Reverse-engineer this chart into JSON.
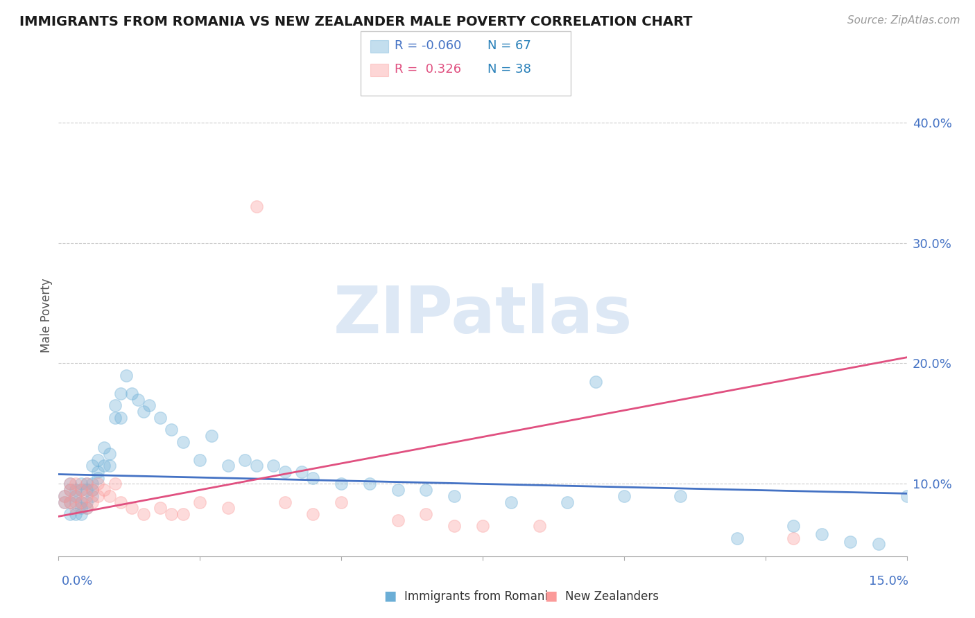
{
  "title": "IMMIGRANTS FROM ROMANIA VS NEW ZEALANDER MALE POVERTY CORRELATION CHART",
  "source": "Source: ZipAtlas.com",
  "ylabel": "Male Poverty",
  "ytick_labels": [
    "10.0%",
    "20.0%",
    "30.0%",
    "40.0%"
  ],
  "ytick_values": [
    0.1,
    0.2,
    0.3,
    0.4
  ],
  "xlim": [
    0.0,
    0.15
  ],
  "ylim": [
    0.04,
    0.44
  ],
  "watermark": "ZIPatlas",
  "blue_scatter_x": [
    0.001,
    0.001,
    0.002,
    0.002,
    0.002,
    0.002,
    0.003,
    0.003,
    0.003,
    0.003,
    0.004,
    0.004,
    0.004,
    0.004,
    0.004,
    0.005,
    0.005,
    0.005,
    0.005,
    0.006,
    0.006,
    0.006,
    0.006,
    0.007,
    0.007,
    0.007,
    0.008,
    0.008,
    0.009,
    0.009,
    0.01,
    0.01,
    0.011,
    0.011,
    0.012,
    0.013,
    0.014,
    0.015,
    0.016,
    0.018,
    0.02,
    0.022,
    0.025,
    0.027,
    0.03,
    0.033,
    0.035,
    0.038,
    0.04,
    0.043,
    0.045,
    0.05,
    0.055,
    0.06,
    0.065,
    0.07,
    0.08,
    0.09,
    0.1,
    0.11,
    0.12,
    0.13,
    0.135,
    0.14,
    0.145,
    0.15,
    0.095
  ],
  "blue_scatter_y": [
    0.09,
    0.085,
    0.095,
    0.1,
    0.085,
    0.075,
    0.09,
    0.095,
    0.085,
    0.075,
    0.1,
    0.095,
    0.085,
    0.08,
    0.075,
    0.095,
    0.1,
    0.085,
    0.08,
    0.095,
    0.1,
    0.115,
    0.09,
    0.11,
    0.12,
    0.105,
    0.115,
    0.13,
    0.115,
    0.125,
    0.155,
    0.165,
    0.155,
    0.175,
    0.19,
    0.175,
    0.17,
    0.16,
    0.165,
    0.155,
    0.145,
    0.135,
    0.12,
    0.14,
    0.115,
    0.12,
    0.115,
    0.115,
    0.11,
    0.11,
    0.105,
    0.1,
    0.1,
    0.095,
    0.095,
    0.09,
    0.085,
    0.085,
    0.09,
    0.09,
    0.055,
    0.065,
    0.058,
    0.052,
    0.05,
    0.09,
    0.185
  ],
  "pink_scatter_x": [
    0.001,
    0.001,
    0.002,
    0.002,
    0.002,
    0.003,
    0.003,
    0.003,
    0.004,
    0.004,
    0.005,
    0.005,
    0.005,
    0.006,
    0.006,
    0.007,
    0.007,
    0.008,
    0.009,
    0.01,
    0.011,
    0.013,
    0.015,
    0.018,
    0.02,
    0.022,
    0.025,
    0.03,
    0.035,
    0.04,
    0.045,
    0.05,
    0.06,
    0.065,
    0.07,
    0.075,
    0.085,
    0.13
  ],
  "pink_scatter_y": [
    0.09,
    0.085,
    0.095,
    0.1,
    0.085,
    0.1,
    0.09,
    0.08,
    0.095,
    0.085,
    0.1,
    0.09,
    0.08,
    0.095,
    0.085,
    0.1,
    0.09,
    0.095,
    0.09,
    0.1,
    0.085,
    0.08,
    0.075,
    0.08,
    0.075,
    0.075,
    0.085,
    0.08,
    0.33,
    0.085,
    0.075,
    0.085,
    0.07,
    0.075,
    0.065,
    0.065,
    0.065,
    0.055
  ],
  "blue_line_x": [
    0.0,
    0.15
  ],
  "blue_line_y": [
    0.108,
    0.092
  ],
  "pink_line_x": [
    0.0,
    0.15
  ],
  "pink_line_y": [
    0.073,
    0.205
  ],
  "blue_color": "#6baed6",
  "pink_color": "#fb9a99",
  "blue_line_color": "#4472c4",
  "pink_line_color": "#e05080",
  "grid_color": "#cccccc",
  "title_color": "#1a1a1a",
  "axis_label_color": "#4472c4",
  "watermark_color": "#dde8f5",
  "source_color": "#999999",
  "legend_r_color": "#c0392b",
  "legend_n_color": "#2980b9"
}
